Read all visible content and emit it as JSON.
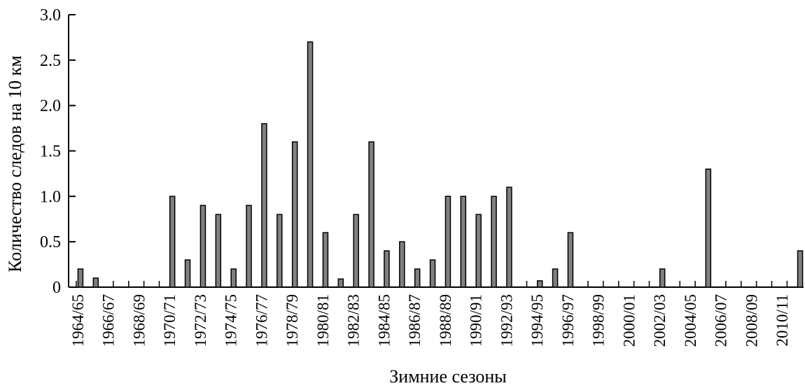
{
  "chart_data": {
    "type": "bar",
    "title": "",
    "xlabel": "Зимние сезоны",
    "ylabel": "Количество следов на 10 км",
    "ylim": [
      0,
      3.0
    ],
    "yticks": [
      "0",
      "0.5",
      "1.0",
      "1.5",
      "2.0",
      "2.5",
      "3.0"
    ],
    "ytick_values": [
      0,
      0.5,
      1.0,
      1.5,
      2.0,
      2.5,
      3.0
    ],
    "x_tick_labels": [
      "1964/65",
      "1966/67",
      "1968/69",
      "1970/71",
      "1972/73",
      "1974/75",
      "1976/77",
      "1978/79",
      "1980/81",
      "1982/83",
      "1984/85",
      "1986/87",
      "1988/89",
      "1990/91",
      "1992/93",
      "1994/95",
      "1996/97",
      "1998/99",
      "2000/01",
      "2002/03",
      "2004/05",
      "2006/07",
      "2008/09",
      "2010/11"
    ],
    "bar_color": "#808080",
    "categories": [
      "1964/65",
      "1965/66",
      "1966/67",
      "1967/68",
      "1968/69",
      "1969/70",
      "1970/71",
      "1971/72",
      "1972/73",
      "1973/74",
      "1974/75",
      "1975/76",
      "1976/77",
      "1977/78",
      "1978/79",
      "1979/80",
      "1980/81",
      "1981/82",
      "1982/83",
      "1983/84",
      "1984/85",
      "1985/86",
      "1986/87",
      "1987/88",
      "1988/89",
      "1989/90",
      "1990/91",
      "1991/92",
      "1992/93",
      "1993/94",
      "1994/95",
      "1995/96",
      "1996/97",
      "1997/98",
      "1998/99",
      "1999/00",
      "2000/01",
      "2001/02",
      "2002/03",
      "2003/04",
      "2004/05",
      "2005/06",
      "2006/07",
      "2007/08",
      "2008/09",
      "2009/10",
      "2010/11",
      "2011/12"
    ],
    "values": [
      0.2,
      0.1,
      0,
      0,
      0,
      0,
      1.0,
      0.3,
      0.9,
      0.8,
      0.2,
      0.9,
      1.8,
      0.8,
      1.6,
      2.7,
      0.6,
      0.09,
      0.8,
      1.6,
      0.4,
      0.5,
      0.2,
      0.3,
      1.0,
      1.0,
      0.8,
      1.0,
      1.1,
      0,
      0.07,
      0.2,
      0.6,
      0,
      0,
      0,
      0,
      0,
      0.2,
      0,
      0,
      1.3,
      0,
      0,
      0,
      0,
      0,
      0.4
    ]
  }
}
